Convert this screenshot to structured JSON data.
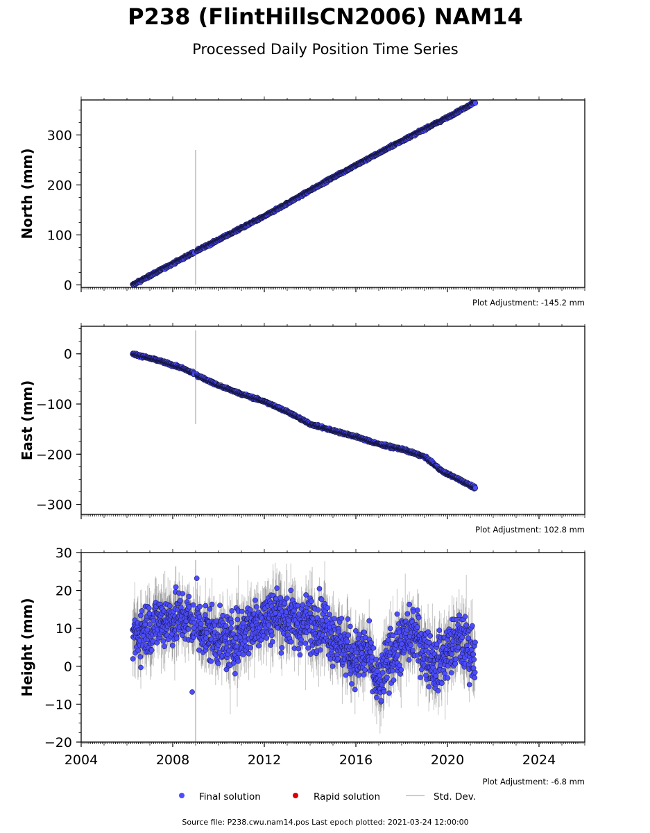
{
  "title": "P238 (FlintHillsCN2006) NAM14",
  "subtitle": "Processed Daily Position Time Series",
  "footer": "Source file: P238.cwu.nam14.pos  Last epoch plotted: 2021-03-24 12:00:00",
  "legend": {
    "final": "Final solution",
    "rapid": "Rapid solution",
    "std": "Std. Dev."
  },
  "colors": {
    "final": "#4c4cff",
    "rapid": "#dd0000",
    "std": "#bbbbbb",
    "edge": "#101030"
  },
  "chart_data": [
    {
      "type": "scatter",
      "name": "north",
      "ylabel": "North (mm)",
      "adjustment": "Plot Adjustment: -145.2 mm",
      "xlim": [
        2004,
        2026
      ],
      "ylim": [
        -5,
        370
      ],
      "yticks": [
        0,
        100,
        200,
        300
      ],
      "trend": [
        [
          2006.25,
          0
        ],
        [
          2009.0,
          67
        ],
        [
          2012.0,
          137
        ],
        [
          2015.0,
          215
        ],
        [
          2018.0,
          288
        ],
        [
          2020.0,
          335
        ],
        [
          2021.22,
          366
        ]
      ],
      "outlier": {
        "x": 2009.0,
        "low": 0,
        "high": 270
      }
    },
    {
      "type": "scatter",
      "name": "east",
      "ylabel": "East (mm)",
      "adjustment": "Plot Adjustment: 102.8 mm",
      "xlim": [
        2004,
        2026
      ],
      "ylim": [
        -320,
        55
      ],
      "yticks": [
        -300,
        -200,
        -100,
        0
      ],
      "trend": [
        [
          2006.25,
          0
        ],
        [
          2007.5,
          -15
        ],
        [
          2008.5,
          -30
        ],
        [
          2009.3,
          -48
        ],
        [
          2010.0,
          -63
        ],
        [
          2011.0,
          -80
        ],
        [
          2012.0,
          -95
        ],
        [
          2013.0,
          -115
        ],
        [
          2014.0,
          -140
        ],
        [
          2015.0,
          -153
        ],
        [
          2016.0,
          -165
        ],
        [
          2017.0,
          -180
        ],
        [
          2018.0,
          -190
        ],
        [
          2019.0,
          -205
        ],
        [
          2019.8,
          -235
        ],
        [
          2020.5,
          -250
        ],
        [
          2021.22,
          -268
        ]
      ],
      "outlier": {
        "x": 2009.0,
        "low": -140,
        "high": 47
      }
    },
    {
      "type": "scatter",
      "name": "height",
      "ylabel": "Height (mm)",
      "adjustment": "Plot Adjustment: -6.8 mm",
      "xlim": [
        2004,
        2026
      ],
      "ylim": [
        -20,
        30
      ],
      "yticks": [
        -20,
        -10,
        0,
        10,
        20,
        30
      ],
      "xticks": [
        2004,
        2008,
        2012,
        2016,
        2020,
        2024
      ],
      "trend": [
        [
          2006.25,
          8
        ],
        [
          2007.5,
          12
        ],
        [
          2008.5,
          13
        ],
        [
          2009.5,
          9
        ],
        [
          2010.5,
          6
        ],
        [
          2011.5,
          11
        ],
        [
          2012.5,
          14
        ],
        [
          2013.5,
          11
        ],
        [
          2014.5,
          12
        ],
        [
          2015.3,
          6
        ],
        [
          2016.0,
          2
        ],
        [
          2016.5,
          4
        ],
        [
          2017.0,
          -6
        ],
        [
          2017.5,
          3
        ],
        [
          2018.0,
          6
        ],
        [
          2018.5,
          9
        ],
        [
          2019.0,
          4
        ],
        [
          2019.5,
          0
        ],
        [
          2020.0,
          4
        ],
        [
          2020.5,
          7
        ],
        [
          2021.22,
          3
        ]
      ],
      "outlier": {
        "x": 2009.0,
        "low": -20,
        "high": 28
      }
    }
  ]
}
